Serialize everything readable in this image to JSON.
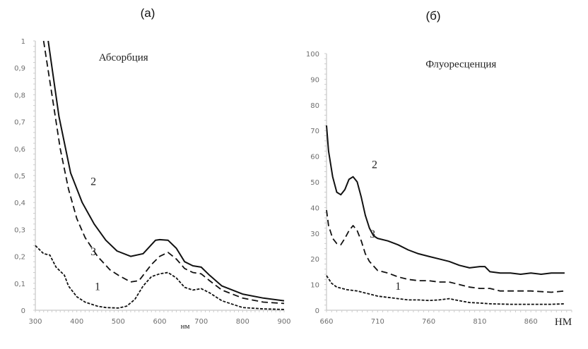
{
  "chart_data": [
    {
      "panel_label": "(а)",
      "type": "line",
      "title": "Абсорбция",
      "xlabel": "нм",
      "ylabel": "",
      "xlim": [
        300,
        900
      ],
      "ylim": [
        0,
        1
      ],
      "xticks": [
        "300",
        "400",
        "500",
        "600",
        "700",
        "800",
        "900"
      ],
      "yticks": [
        "0",
        "0,1",
        "0,2",
        "0,3",
        "0,4",
        "0,5",
        "0,6",
        "0,7",
        "0,8",
        "0,9",
        "1"
      ],
      "grid": false,
      "series": [
        {
          "name": "1",
          "style": "dotted-dash",
          "x": [
            300,
            320,
            335,
            350,
            370,
            380,
            400,
            420,
            450,
            470,
            500,
            520,
            540,
            560,
            580,
            600,
            620,
            640,
            660,
            680,
            700,
            720,
            750,
            800,
            850,
            900
          ],
          "y": [
            0.24,
            0.21,
            0.205,
            0.16,
            0.13,
            0.09,
            0.05,
            0.03,
            0.015,
            0.01,
            0.008,
            0.015,
            0.04,
            0.09,
            0.125,
            0.135,
            0.14,
            0.12,
            0.085,
            0.075,
            0.08,
            0.065,
            0.035,
            0.01,
            0.005,
            0.003
          ]
        },
        {
          "name": "2",
          "style": "solid",
          "x": [
            331,
            357,
            385,
            413,
            442,
            470,
            497,
            530,
            560,
            590,
            600,
            620,
            640,
            660,
            680,
            700,
            720,
            750,
            800,
            850,
            900
          ],
          "y": [
            1.0,
            0.72,
            0.51,
            0.4,
            0.32,
            0.26,
            0.22,
            0.2,
            0.21,
            0.26,
            0.262,
            0.26,
            0.23,
            0.18,
            0.165,
            0.16,
            0.13,
            0.09,
            0.06,
            0.045,
            0.035
          ]
        },
        {
          "name": "3",
          "style": "dashed",
          "x": [
            320,
            340,
            360,
            380,
            400,
            420,
            450,
            480,
            500,
            530,
            550,
            580,
            600,
            620,
            640,
            660,
            680,
            700,
            720,
            750,
            800,
            850,
            900
          ],
          "y": [
            1.0,
            0.8,
            0.6,
            0.45,
            0.34,
            0.27,
            0.2,
            0.15,
            0.13,
            0.105,
            0.11,
            0.17,
            0.2,
            0.215,
            0.19,
            0.155,
            0.14,
            0.135,
            0.11,
            0.075,
            0.045,
            0.03,
            0.025
          ]
        }
      ],
      "annotations": [
        {
          "text": "2",
          "x": 440,
          "y": 0.48
        },
        {
          "text": "3",
          "x": 440,
          "y": 0.22
        },
        {
          "text": "1",
          "x": 450,
          "y": 0.09
        }
      ]
    },
    {
      "panel_label": "(б)",
      "type": "line",
      "title": "Флуоресценция",
      "xlabel": "НМ",
      "ylabel": "",
      "xlim": [
        660,
        900
      ],
      "ylim": [
        0,
        100
      ],
      "xticks": [
        "660",
        "710",
        "760",
        "810",
        "860"
      ],
      "yticks": [
        "0",
        "10",
        "20",
        "30",
        "40",
        "50",
        "60",
        "70",
        "80",
        "90",
        "100"
      ],
      "grid": false,
      "series": [
        {
          "name": "1",
          "style": "dotted-dash",
          "x": [
            660,
            665,
            670,
            680,
            690,
            700,
            710,
            720,
            730,
            740,
            750,
            760,
            770,
            780,
            790,
            800,
            810,
            820,
            840,
            860,
            880,
            893
          ],
          "y": [
            13.5,
            10.5,
            9,
            8,
            7.5,
            6.5,
            5.5,
            5,
            4.5,
            4,
            4,
            3.8,
            4,
            4.5,
            3.7,
            3,
            2.8,
            2.5,
            2.3,
            2.3,
            2.3,
            2.5
          ]
        },
        {
          "name": "2",
          "style": "solid",
          "x": [
            660,
            662,
            666,
            670,
            674,
            678,
            682,
            686,
            690,
            694,
            698,
            702,
            706,
            710,
            720,
            730,
            740,
            750,
            760,
            770,
            780,
            790,
            800,
            810,
            815,
            820,
            830,
            840,
            850,
            860,
            870,
            880,
            893
          ],
          "y": [
            72,
            62,
            52,
            46,
            45,
            47,
            51,
            52,
            50,
            44,
            37,
            32,
            29,
            28,
            27,
            25.5,
            23.5,
            22,
            21,
            20,
            19,
            17.5,
            16.5,
            17,
            17,
            15,
            14.5,
            14.5,
            14,
            14.5,
            14,
            14.5,
            14.5
          ]
        },
        {
          "name": "3",
          "style": "dashed",
          "x": [
            660,
            662,
            666,
            670,
            674,
            678,
            682,
            686,
            690,
            694,
            698,
            702,
            710,
            720,
            730,
            740,
            750,
            760,
            770,
            780,
            790,
            800,
            810,
            820,
            830,
            840,
            860,
            880,
            893
          ],
          "y": [
            39,
            33,
            28,
            26,
            25.5,
            28,
            31,
            33,
            31,
            27,
            22,
            19,
            15.5,
            14.5,
            13,
            12,
            11.5,
            11.5,
            11,
            11,
            10,
            9,
            8.5,
            8.5,
            7.5,
            7.5,
            7.5,
            7,
            7.5
          ]
        }
      ],
      "annotations": [
        {
          "text": "2",
          "x": 707,
          "y": 57
        },
        {
          "text": "3",
          "x": 705,
          "y": 30
        },
        {
          "text": "1",
          "x": 730,
          "y": 9.6
        }
      ]
    }
  ]
}
